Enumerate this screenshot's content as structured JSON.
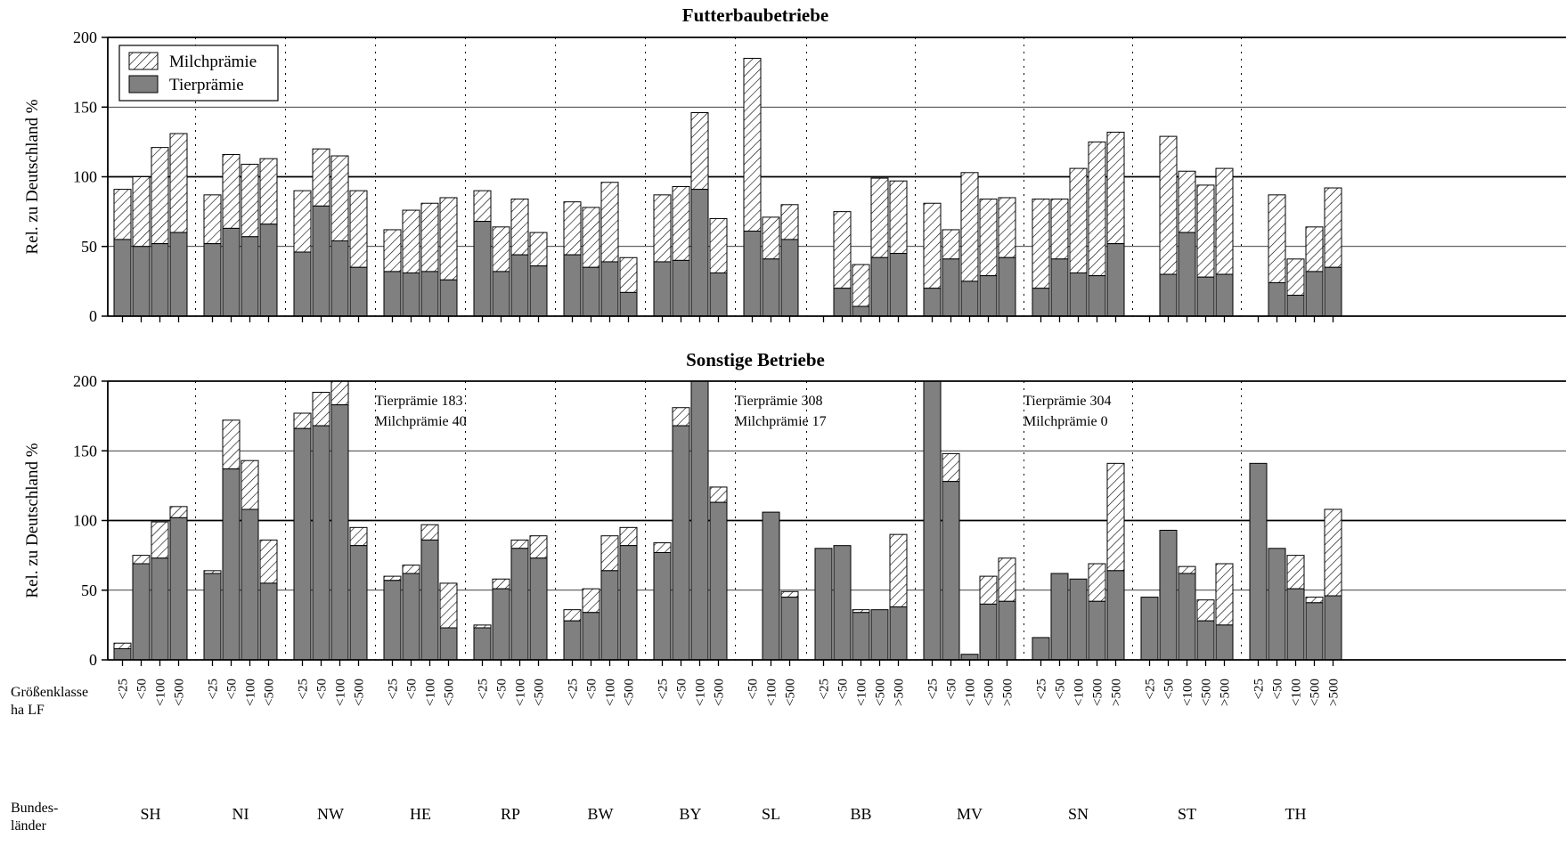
{
  "colors": {
    "tier": "#808080",
    "milch_bg": "#ffffff",
    "hatch": "#000000",
    "axis": "#000000"
  },
  "labels": {
    "row_klasse_1": "Größenklasse",
    "row_klasse_2": "ha LF",
    "row_land_1": "Bundes-",
    "row_land_2": "länder"
  },
  "chart_data": [
    {
      "type": "bar",
      "stacked": true,
      "title": "Futterbaubetriebe",
      "ylabel": "Rel. zu Deutschland %",
      "ylim": [
        0,
        200
      ],
      "yticks": [
        0,
        50,
        100,
        150,
        200
      ],
      "legend": {
        "placement": "top-left",
        "entries": [
          "Milchprämie",
          "Tierprämie"
        ]
      },
      "series_names": [
        "Tierprämie",
        "Milchprämie"
      ],
      "groups": [
        {
          "land": "SH",
          "categories": [
            "<25",
            "<50",
            "<100",
            "<500"
          ],
          "tier": [
            55,
            50,
            52,
            60
          ],
          "total": [
            91,
            100,
            121,
            131
          ]
        },
        {
          "land": "NI",
          "categories": [
            "<25",
            "<50",
            "<100",
            "<500"
          ],
          "tier": [
            52,
            63,
            57,
            66
          ],
          "total": [
            87,
            116,
            109,
            113
          ]
        },
        {
          "land": "NW",
          "categories": [
            "<25",
            "<50",
            "<100",
            "<500"
          ],
          "tier": [
            46,
            79,
            54,
            35
          ],
          "total": [
            90,
            120,
            115,
            90
          ]
        },
        {
          "land": "HE",
          "categories": [
            "<25",
            "<50",
            "<100",
            "<500"
          ],
          "tier": [
            32,
            31,
            32,
            26
          ],
          "total": [
            62,
            76,
            81,
            85
          ]
        },
        {
          "land": "RP",
          "categories": [
            "<25",
            "<50",
            "<100",
            "<500"
          ],
          "tier": [
            68,
            32,
            44,
            36
          ],
          "total": [
            90,
            64,
            84,
            60
          ]
        },
        {
          "land": "BW",
          "categories": [
            "<25",
            "<50",
            "<100",
            "<500"
          ],
          "tier": [
            44,
            35,
            39,
            17
          ],
          "total": [
            82,
            78,
            96,
            42
          ]
        },
        {
          "land": "BY",
          "categories": [
            "<25",
            "<50",
            "<100",
            "<500"
          ],
          "tier": [
            39,
            40,
            91,
            31
          ],
          "total": [
            87,
            93,
            146,
            70
          ]
        },
        {
          "land": "SL",
          "categories": [
            "<50",
            "<100",
            "<500"
          ],
          "tier": [
            61,
            41,
            55
          ],
          "total": [
            185,
            71,
            80
          ]
        },
        {
          "land": "BB",
          "categories": [
            "<25",
            "<50",
            "<100",
            "<500",
            ">500"
          ],
          "tier": [
            null,
            20,
            7,
            42,
            45
          ],
          "total": [
            null,
            75,
            37,
            99,
            97
          ]
        },
        {
          "land": "MV",
          "categories": [
            "<25",
            "<50",
            "<100",
            "<500",
            ">500"
          ],
          "tier": [
            20,
            41,
            25,
            29,
            42
          ],
          "total": [
            81,
            62,
            103,
            84,
            85
          ]
        },
        {
          "land": "SN",
          "categories": [
            "<25",
            "<50",
            "<100",
            "<500",
            ">500"
          ],
          "tier": [
            20,
            41,
            31,
            29,
            52
          ],
          "total": [
            84,
            84,
            106,
            125,
            132
          ]
        },
        {
          "land": "ST",
          "categories": [
            "<25",
            "<50",
            "<100",
            "<500",
            ">500"
          ],
          "tier": [
            null,
            30,
            60,
            28,
            30
          ],
          "total": [
            null,
            129,
            104,
            94,
            106
          ]
        },
        {
          "land": "TH",
          "categories": [
            "<25",
            "<50",
            "<100",
            "<500",
            ">500"
          ],
          "tier": [
            null,
            24,
            15,
            32,
            35
          ],
          "total": [
            null,
            87,
            41,
            64,
            92
          ]
        }
      ]
    },
    {
      "type": "bar",
      "stacked": true,
      "title": "Sonstige Betriebe",
      "ylabel": "Rel. zu Deutschland %",
      "ylim": [
        0,
        200
      ],
      "yticks": [
        0,
        50,
        100,
        150,
        200
      ],
      "series_names": [
        "Tierprämie",
        "Milchprämie"
      ],
      "annotations": [
        {
          "group": "NW",
          "line1": "Tierprämie   183",
          "line2": "Milchprämie  40"
        },
        {
          "group": "BY",
          "line1": "Tierprämie   308",
          "line2": "Milchprämie 17"
        },
        {
          "group": "MV",
          "line1": "Tierprämie   304",
          "line2": "Milchprämie   0"
        }
      ],
      "groups": [
        {
          "land": "SH",
          "categories": [
            "<25",
            "<50",
            "<100",
            "<500"
          ],
          "tier": [
            8,
            69,
            73,
            102
          ],
          "total": [
            12,
            75,
            99,
            110
          ]
        },
        {
          "land": "NI",
          "categories": [
            "<25",
            "<50",
            "<100",
            "<500"
          ],
          "tier": [
            62,
            137,
            108,
            55
          ],
          "total": [
            64,
            172,
            143,
            86
          ]
        },
        {
          "land": "NW",
          "categories": [
            "<25",
            "<50",
            "<100",
            "<500"
          ],
          "tier": [
            166,
            168,
            183,
            82
          ],
          "total": [
            177,
            192,
            223,
            95
          ]
        },
        {
          "land": "HE",
          "categories": [
            "<25",
            "<50",
            "<100",
            "<500"
          ],
          "tier": [
            57,
            62,
            86,
            23
          ],
          "total": [
            60,
            68,
            97,
            55
          ]
        },
        {
          "land": "RP",
          "categories": [
            "<25",
            "<50",
            "<100",
            "<500"
          ],
          "tier": [
            23,
            51,
            80,
            73
          ],
          "total": [
            25,
            58,
            86,
            89
          ]
        },
        {
          "land": "BW",
          "categories": [
            "<25",
            "<50",
            "<100",
            "<500"
          ],
          "tier": [
            28,
            34,
            64,
            82
          ],
          "total": [
            36,
            51,
            89,
            95
          ]
        },
        {
          "land": "BY",
          "categories": [
            "<25",
            "<50",
            "<100",
            "<500"
          ],
          "tier": [
            77,
            168,
            308,
            113
          ],
          "total": [
            84,
            181,
            325,
            124
          ]
        },
        {
          "land": "SL",
          "categories": [
            "<50",
            "<100",
            "<500"
          ],
          "tier": [
            null,
            106,
            45
          ],
          "total": [
            null,
            106,
            49
          ]
        },
        {
          "land": "BB",
          "categories": [
            "<25",
            "<50",
            "<100",
            "<500",
            ">500"
          ],
          "tier": [
            80,
            82,
            34,
            36,
            38
          ],
          "total": [
            80,
            82,
            36,
            36,
            90
          ]
        },
        {
          "land": "MV",
          "categories": [
            "<25",
            "<50",
            "<100",
            "<500",
            ">500"
          ],
          "tier": [
            304,
            128,
            4,
            40,
            42
          ],
          "total": [
            304,
            148,
            4,
            60,
            73
          ]
        },
        {
          "land": "SN",
          "categories": [
            "<25",
            "<50",
            "<100",
            "<500",
            ">500"
          ],
          "tier": [
            16,
            62,
            58,
            42,
            64
          ],
          "total": [
            16,
            62,
            58,
            69,
            141
          ]
        },
        {
          "land": "ST",
          "categories": [
            "<25",
            "<50",
            "<100",
            "<500",
            ">500"
          ],
          "tier": [
            45,
            93,
            62,
            28,
            25
          ],
          "total": [
            45,
            93,
            67,
            43,
            69
          ]
        },
        {
          "land": "TH",
          "categories": [
            "<25",
            "<50",
            "<100",
            "<500",
            ">500"
          ],
          "tier": [
            141,
            80,
            51,
            41,
            46
          ],
          "total": [
            141,
            80,
            75,
            45,
            108
          ]
        }
      ]
    }
  ]
}
